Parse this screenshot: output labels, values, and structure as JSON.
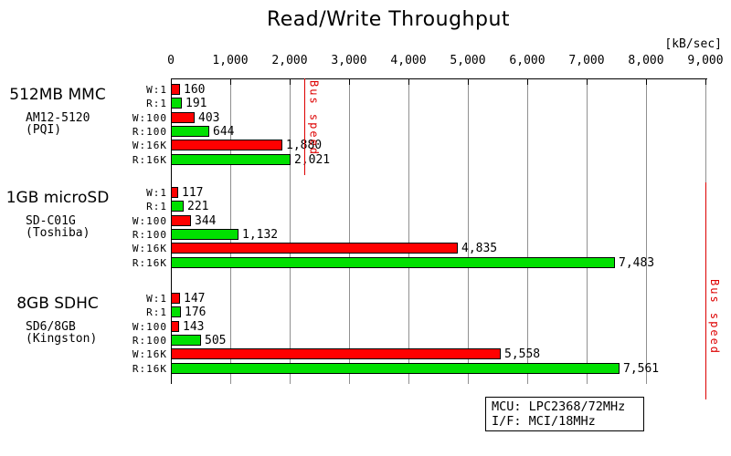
{
  "title": "Read/Write Throughput",
  "unit_label": "[kB/sec]",
  "colors": {
    "write_bar": "#ff0000",
    "read_bar": "#00e000",
    "bus_speed_line": "#dd0000",
    "gridline": "#909090",
    "axis": "#000000",
    "background": "#ffffff"
  },
  "chart_data": {
    "type": "bar",
    "orientation": "horizontal",
    "title": "Read/Write Throughput",
    "xlabel": "[kB/sec]",
    "xlim": [
      0,
      9000
    ],
    "x_ticks": [
      0,
      1000,
      2000,
      3000,
      4000,
      5000,
      6000,
      7000,
      8000,
      9000
    ],
    "grid": true,
    "row_labels": [
      "W:1",
      "R:1",
      "W:100",
      "R:100",
      "W:16K",
      "R:16K"
    ],
    "series_legend": {
      "W": "write (red)",
      "R": "read (green)"
    },
    "groups": [
      {
        "name": "512MB MMC",
        "model": "AM12-5120",
        "vendor": "(PQI)",
        "values": [
          160,
          191,
          403,
          644,
          1880,
          2021
        ]
      },
      {
        "name": "1GB microSD",
        "model": "SD-C01G",
        "vendor": "(Toshiba)",
        "values": [
          117,
          221,
          344,
          1132,
          4835,
          7483
        ]
      },
      {
        "name": "8GB SDHC",
        "model": "SD6/8GB",
        "vendor": "(Kingston)",
        "values": [
          147,
          176,
          143,
          505,
          5558,
          7561
        ]
      }
    ],
    "bus_speed_lines": [
      {
        "label": "Bus speed",
        "value": 2250,
        "applies_to": "512MB MMC"
      },
      {
        "label": "Bus speed",
        "value": 9000,
        "applies_to": "1GB microSD / 8GB SDHC"
      }
    ]
  },
  "info_box": {
    "line1": "MCU: LPC2368/72MHz",
    "line2": "I/F: MCI/18MHz"
  }
}
